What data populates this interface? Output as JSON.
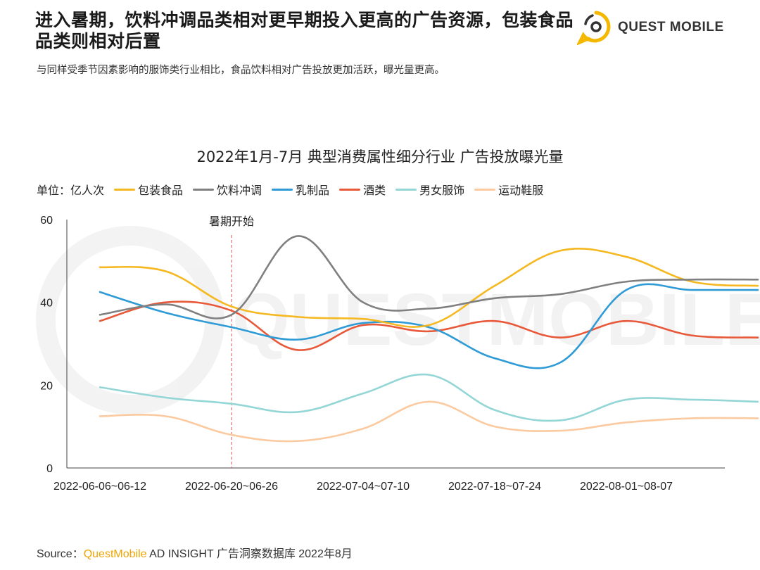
{
  "header": {
    "headline": "进入暑期，饮料冲调品类相对更早期投入更高的广告资源，包装食品品类则相对后置",
    "subtitle": "与同样受季节因素影响的服饰类行业相比，食品饮料相对广告投放更加活跃，曝光量更高。"
  },
  "logo": {
    "text": "QUEST MOBILE",
    "icon": "questmobile-logo-icon",
    "accent": "#f5b800"
  },
  "legend": {
    "unit_label": "单位：亿人次"
  },
  "source": {
    "prefix": "Source：",
    "brand": "QuestMobile",
    "rest": " AD INSIGHT 广告洞察数据库 2022年8月"
  },
  "chart_data": {
    "type": "line",
    "title": "2022年1月-7月 典型消费属性细分行业 广告投放曝光量",
    "xlabel": "",
    "ylabel": "单位：亿人次",
    "ylim": [
      0,
      60
    ],
    "yticks": [
      "0",
      "20",
      "40",
      "60"
    ],
    "x": [
      1,
      2,
      3,
      4,
      5,
      6,
      7,
      8,
      9,
      10,
      11
    ],
    "x_tick_labels": [
      {
        "x": 1,
        "label": "2022-06-06~06-12"
      },
      {
        "x": 3,
        "label": "2022-06-20~06-26"
      },
      {
        "x": 5,
        "label": "2022-07-04~07-10"
      },
      {
        "x": 7,
        "label": "2022-07-18~07-24"
      },
      {
        "x": 9,
        "label": "2022-08-01~08-07"
      }
    ],
    "annotation": {
      "x": 3,
      "label": "暑期开始"
    },
    "series": [
      {
        "name": "包装食品",
        "color": "#f5b820",
        "values": [
          48.5,
          47.5,
          39,
          36.5,
          36,
          34.5,
          44,
          52.5,
          51,
          45,
          44
        ]
      },
      {
        "name": "饮料冲调",
        "color": "#808080",
        "values": [
          37,
          39.5,
          37,
          56,
          40,
          38.5,
          41,
          42,
          45,
          45.5,
          45.5
        ]
      },
      {
        "name": "乳制品",
        "color": "#2f9bd6",
        "values": [
          42.5,
          37.5,
          34,
          31,
          35,
          34,
          26.5,
          25.5,
          43,
          43,
          43
        ]
      },
      {
        "name": "酒类",
        "color": "#e8593a",
        "values": [
          35.5,
          40,
          38,
          28.5,
          34.5,
          33,
          35.5,
          31.5,
          35.5,
          32,
          31.5
        ]
      },
      {
        "name": "男女服饰",
        "color": "#94d6d6",
        "values": [
          19.5,
          17,
          15.5,
          13.5,
          18,
          22.5,
          14,
          11.5,
          16.5,
          16.5,
          16
        ]
      },
      {
        "name": "运动鞋服",
        "color": "#fbcaa0",
        "values": [
          12.5,
          12.5,
          8,
          6.5,
          9.5,
          16,
          10,
          9,
          11,
          12,
          12
        ]
      }
    ]
  }
}
